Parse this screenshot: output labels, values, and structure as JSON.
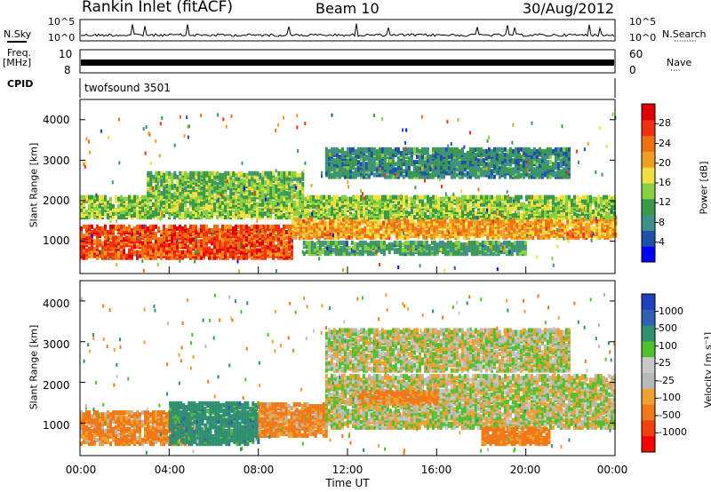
{
  "header": {
    "station": "Rankin Inlet (fitACF)",
    "beam": "Beam 10",
    "date": "30/Aug/2012"
  },
  "strip_labels": {
    "nsky": "N.Sky",
    "nsearch": "N.Search",
    "nsearch_dots": "·········",
    "freq": "Freq.",
    "mhz": "[MHz]",
    "nave": "Nave",
    "nave_dots": "····",
    "cpid": "CPID",
    "cpid_value": "twofsound 3501",
    "noise_ticks_left": [
      "10^5",
      "10^0"
    ],
    "noise_ticks_right": [
      "10^5",
      "10^0"
    ],
    "freq_ticks": [
      "10",
      "8"
    ],
    "nave_ticks": [
      "60",
      "0"
    ]
  },
  "colors": {
    "power_scale": [
      "#0000ff",
      "#2050a8",
      "#3f8f8a",
      "#3a9a48",
      "#8ad040",
      "#f0e040",
      "#f0a020",
      "#f07010",
      "#f03010",
      "#e00000"
    ],
    "velocity_scale": [
      "#ff0000",
      "#f04010",
      "#f07818",
      "#f0a030",
      "#b8b8b8",
      "#c8c8c8",
      "#50c030",
      "#2f8f70",
      "#3060b0",
      "#2040c0"
    ]
  },
  "chart_data": [
    {
      "type": "heatmap",
      "panel": "power",
      "ylabel": "Slant Range [km]",
      "yticks": [
        "1000",
        "2000",
        "3000",
        "4000"
      ],
      "ylim": [
        200,
        4500
      ],
      "xlim": [
        "00:00",
        "24:00"
      ],
      "colorbar_label": "Power [dB]",
      "colorbar_ticks": [
        "4",
        "8",
        "12",
        "16",
        "20",
        "24",
        "28"
      ],
      "colorbar_range": [
        0,
        32
      ],
      "bands": [
        {
          "t0": 0,
          "t1": 9.5,
          "r0": 600,
          "r1": 1400,
          "db": 27
        },
        {
          "t0": 9.5,
          "t1": 24,
          "r0": 1100,
          "r1": 1600,
          "db": 22
        },
        {
          "t0": 0,
          "t1": 24,
          "r0": 1600,
          "r1": 2100,
          "db": 14
        },
        {
          "t0": 3,
          "t1": 10,
          "r0": 2100,
          "r1": 2700,
          "db": 13
        },
        {
          "t0": 11,
          "t1": 22,
          "r0": 2600,
          "r1": 3300,
          "db": 8
        },
        {
          "t0": 10,
          "t1": 20,
          "r0": 700,
          "r1": 1000,
          "db": 10
        }
      ]
    },
    {
      "type": "heatmap",
      "panel": "velocity",
      "ylabel": "Slant Range [km]",
      "yticks": [
        "1000",
        "2000",
        "3000",
        "4000"
      ],
      "ylim": [
        200,
        4500
      ],
      "xlim": [
        "00:00",
        "24:00"
      ],
      "xticks": [
        "00:00",
        "04:00",
        "08:00",
        "12:00",
        "16:00",
        "20:00",
        "00:00"
      ],
      "xlabel": "Time UT",
      "colorbar_label": "Velocity [m s⁻¹]",
      "colorbar_ticks": [
        "1000",
        "500",
        "100",
        "25",
        "-25",
        "-100",
        "-500",
        "-1000"
      ],
      "bands": [
        {
          "t0": 0,
          "t1": 5,
          "r0": 500,
          "r1": 1300,
          "v": -150
        },
        {
          "t0": 4,
          "t1": 8,
          "r0": 500,
          "r1": 1500,
          "v": 300
        },
        {
          "t0": 8,
          "t1": 11,
          "r0": 700,
          "r1": 1500,
          "v": -150
        },
        {
          "t0": 11,
          "t1": 24,
          "r0": 900,
          "r1": 2200,
          "v": 0
        },
        {
          "t0": 12.5,
          "t1": 16,
          "r0": 1500,
          "r1": 1800,
          "v": -150
        },
        {
          "t0": 18,
          "t1": 21,
          "r0": 500,
          "r1": 900,
          "v": -200
        },
        {
          "t0": 11,
          "t1": 22,
          "r0": 2300,
          "r1": 3300,
          "v": 0
        }
      ]
    }
  ]
}
